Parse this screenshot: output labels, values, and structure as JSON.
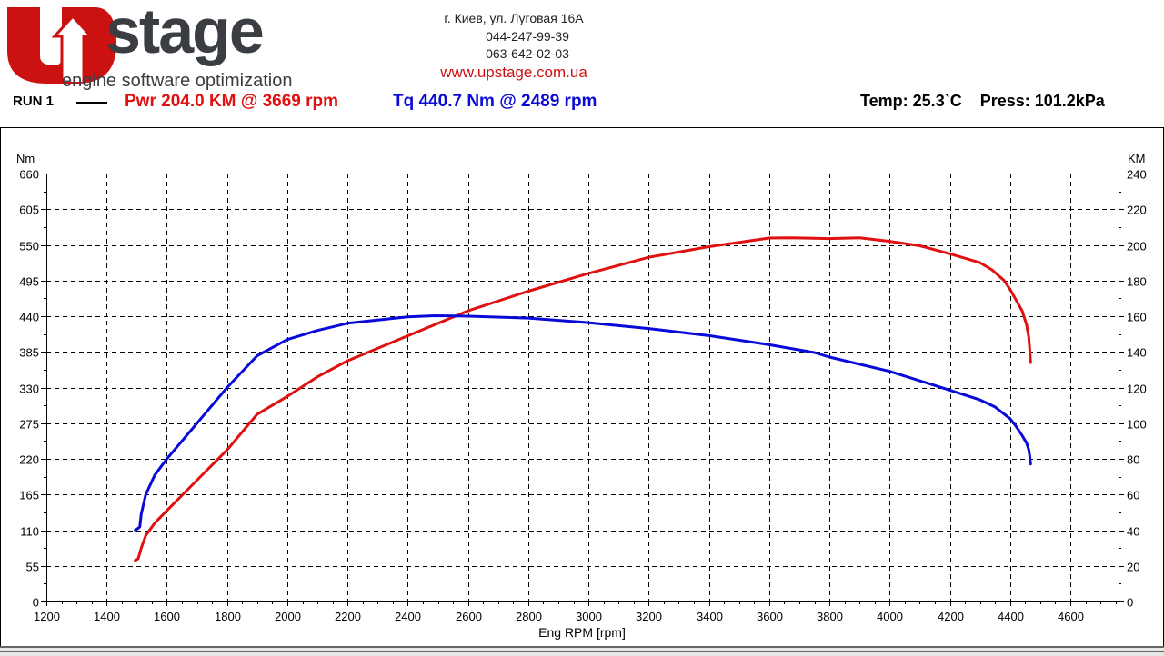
{
  "logo": {
    "mark": "U",
    "name": "stage",
    "tagline": "engine software optimization"
  },
  "contact": {
    "address": "г. Киев, ул. Луговая 16А",
    "phone1": "044-247-99-39",
    "phone2": "063-642-02-03",
    "website": "www.upstage.com.ua"
  },
  "header": {
    "run_label": "RUN 1",
    "pwr_summary": "Pwr  204.0 KM @ 3669 rpm",
    "tq_summary": "Tq 440.7 Nm @ 2489 rpm",
    "conditions": "Temp: 25.3`C    Press: 101.2kPa"
  },
  "colors": {
    "power": "#e01010",
    "torque": "#0a0ad8",
    "logo_red": "#cc1111",
    "logo_dark": "#3a3d42"
  },
  "chart_data": {
    "type": "line",
    "xlabel": "Eng RPM [rpm]",
    "ylabel_left": "Nm",
    "ylabel_right": "KM",
    "xlim": [
      1200,
      4760
    ],
    "ylim_left": [
      0,
      660
    ],
    "ylim_right": [
      0,
      240
    ],
    "x_ticks": [
      "1200",
      "1400",
      "1600",
      "1800",
      "2000",
      "2200",
      "2400",
      "2600",
      "2800",
      "3000",
      "3200",
      "3400",
      "3600",
      "3800",
      "4000",
      "4200",
      "4400",
      "4600"
    ],
    "y_ticks_left": [
      "0",
      "55",
      "110",
      "165",
      "220",
      "275",
      "330",
      "385",
      "440",
      "495",
      "550",
      "605",
      "660"
    ],
    "y_ticks_right": [
      "0",
      "20",
      "40",
      "60",
      "80",
      "100",
      "120",
      "140",
      "160",
      "180",
      "200",
      "220",
      "240"
    ],
    "grid": true,
    "series": [
      {
        "key": "power",
        "axis": "right",
        "color": "#e01010",
        "x": [
          1495,
          1505,
          1515,
          1530,
          1560,
          1600,
          1700,
          1800,
          1900,
          2000,
          2100,
          2200,
          2400,
          2600,
          2800,
          3000,
          3200,
          3400,
          3600,
          3669,
          3800,
          3900,
          4000,
          4100,
          4200,
          4300,
          4340,
          4380,
          4400,
          4420,
          4440,
          4455,
          4462,
          4466,
          4468
        ],
        "y": [
          23,
          24,
          30,
          37,
          44,
          51,
          68,
          85,
          105,
          115,
          126,
          135,
          149,
          163,
          174,
          184,
          193,
          199,
          203.8,
          204,
          203.5,
          204,
          202,
          199.5,
          195,
          190,
          186,
          180,
          175,
          169,
          163,
          155,
          148,
          140,
          134
        ]
      },
      {
        "key": "torque",
        "axis": "left",
        "color": "#0a0ad8",
        "x": [
          1495,
          1505,
          1510,
          1515,
          1530,
          1560,
          1600,
          1700,
          1800,
          1900,
          2000,
          2100,
          2200,
          2400,
          2489,
          2600,
          2800,
          3000,
          3200,
          3400,
          3600,
          3750,
          3800,
          4000,
          4200,
          4300,
          4350,
          4400,
          4420,
          4440,
          4455,
          4462,
          4466,
          4468
        ],
        "y": [
          110,
          113,
          115,
          135,
          165,
          195,
          220,
          275,
          330,
          379,
          404,
          418,
          429,
          439,
          440.7,
          440,
          437,
          430,
          421,
          410,
          396,
          384,
          377,
          355,
          326,
          311,
          300,
          282,
          270,
          256,
          244,
          234,
          222,
          212
        ]
      }
    ]
  }
}
